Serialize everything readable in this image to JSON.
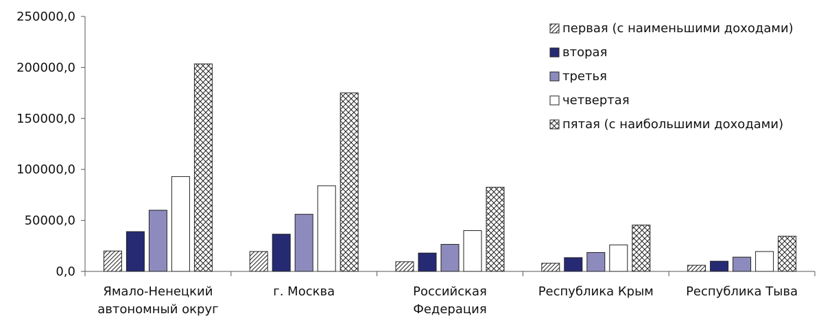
{
  "chart_data": {
    "type": "bar",
    "title": "",
    "xlabel": "",
    "ylabel": "",
    "categories": [
      [
        "Ямало-Ненецкий",
        "автономный округ"
      ],
      [
        "г. Москва"
      ],
      [
        "Российская",
        "Федерация"
      ],
      [
        "Республика Крым"
      ],
      [
        "Республика Тыва"
      ]
    ],
    "series": [
      {
        "name": "первая (с наименьшими доходами)",
        "values": [
          20000,
          19500,
          9500,
          8000,
          6000
        ],
        "pattern": "hatch",
        "color": "#ffffff"
      },
      {
        "name": "вторая",
        "values": [
          39000,
          36500,
          18000,
          13500,
          10000
        ],
        "pattern": "solid",
        "color": "#262a73"
      },
      {
        "name": "третья",
        "values": [
          60000,
          56000,
          26500,
          18500,
          14000
        ],
        "pattern": "solid",
        "color": "#8d8bbd"
      },
      {
        "name": "четвертая",
        "values": [
          93000,
          84000,
          40000,
          26000,
          19500
        ],
        "pattern": "solid",
        "color": "#ffffff"
      },
      {
        "name": "пятая (с наибольшими доходами)",
        "values": [
          203500,
          175000,
          82500,
          45500,
          34500
        ],
        "pattern": "crosshatch",
        "color": "#ffffff"
      }
    ],
    "ylim": [
      0,
      250000
    ],
    "yticks": [
      0,
      50000,
      100000,
      150000,
      200000,
      250000
    ],
    "ytick_labels": [
      "0,0",
      "50000,0",
      "100000,0",
      "150000,0",
      "200000,0",
      "250000,0"
    ],
    "grid": false,
    "legend_position": "top-right"
  }
}
